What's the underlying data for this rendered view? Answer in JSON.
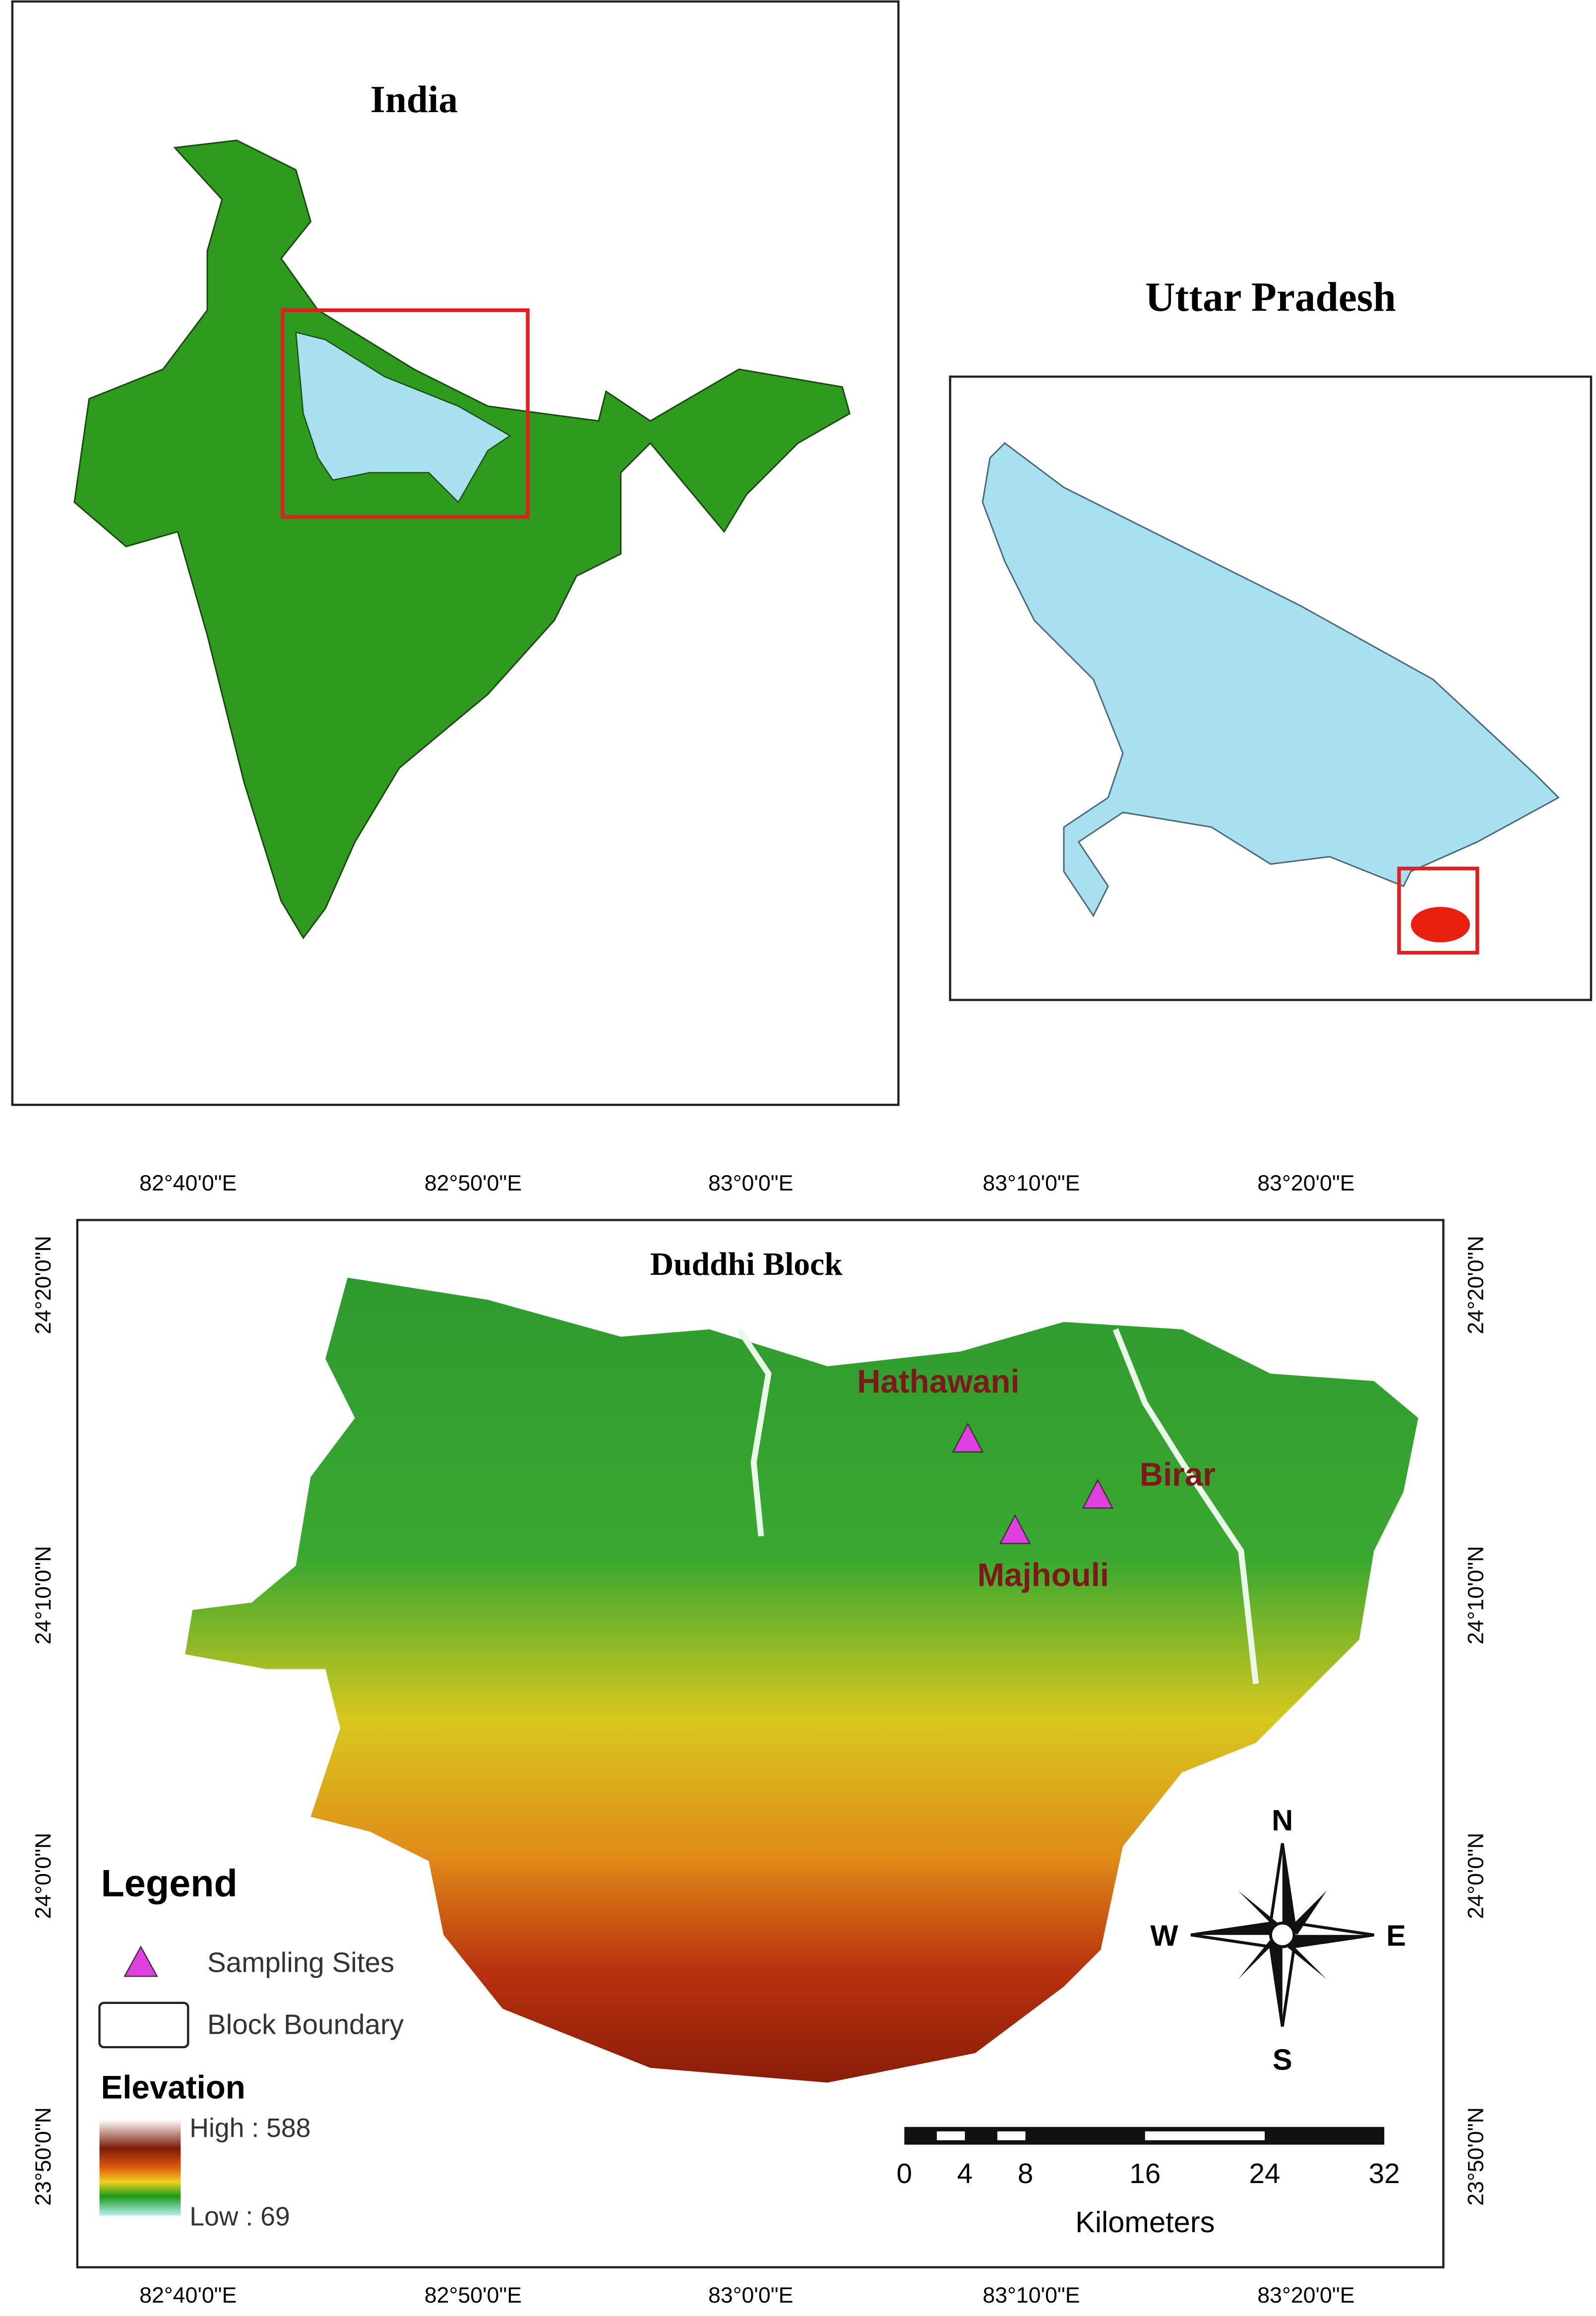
{
  "india_map": {
    "title": "India"
  },
  "up_map": {
    "title": "Uttar Pradesh"
  },
  "duddhi_map": {
    "title": "Duddhi Block",
    "top_ticks": [
      "82°40'0\"E",
      "82°50'0\"E",
      "83°0'0\"E",
      "83°10'0\"E",
      "83°20'0\"E"
    ],
    "bottom_ticks": [
      "82°40'0\"E",
      "82°50'0\"E",
      "83°0'0\"E",
      "83°10'0\"E",
      "83°20'0\"E"
    ],
    "left_ticks": [
      "24°20'0\"N",
      "24°10'0\"N",
      "24°0'0\"N",
      "23°50'0\"N"
    ],
    "right_ticks": [
      "24°20'0\"N",
      "24°10'0\"N",
      "24°0'0\"N",
      "23°50'0\"N"
    ],
    "sites": [
      {
        "name": "Hathawani"
      },
      {
        "name": "Birar"
      },
      {
        "name": "Majhouli"
      }
    ],
    "legend": {
      "title": "Legend",
      "sampling_sites": "Sampling Sites",
      "block_boundary": "Block Boundary",
      "elevation_title": "Elevation",
      "high": "High : 588",
      "low": "Low : 69"
    },
    "scale": {
      "ticks": [
        "0",
        "4",
        "8",
        "16",
        "24",
        "32"
      ],
      "unit": "Kilometers"
    },
    "compass": {
      "n": "N",
      "e": "E",
      "s": "S",
      "w": "W"
    }
  }
}
